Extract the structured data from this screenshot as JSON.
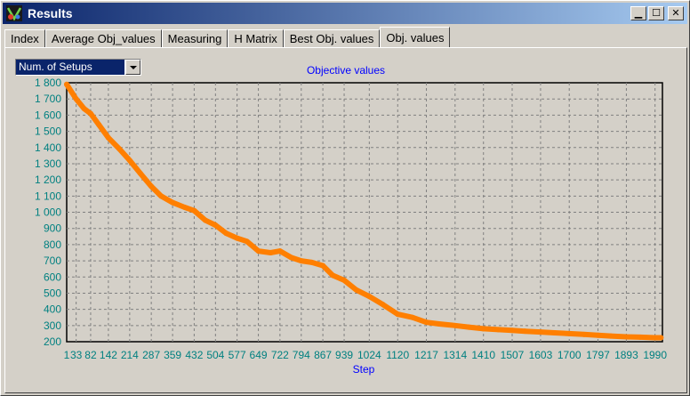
{
  "window": {
    "title": "Results",
    "icon": "app-icon",
    "buttons": {
      "minimize": "▁",
      "maximize": "☐",
      "close": "✕"
    }
  },
  "tabs": [
    {
      "label": "Index",
      "active": false
    },
    {
      "label": "Average Obj_values",
      "active": false
    },
    {
      "label": "Measuring",
      "active": false
    },
    {
      "label": "H Matrix",
      "active": false
    },
    {
      "label": "Best Obj. values",
      "active": false
    },
    {
      "label": "Obj. values",
      "active": true
    }
  ],
  "selector": {
    "value": "Num. of Setups"
  },
  "colors": {
    "series": "#ff7f00",
    "text": "#008080",
    "title": "#0000ff",
    "grid": "#808080"
  },
  "chart_data": {
    "type": "line",
    "title": "Objective values",
    "xlabel": "Step",
    "ylabel": "",
    "xlim": [
      1,
      2015
    ],
    "ylim": [
      200,
      1800
    ],
    "y_ticks": [
      200,
      300,
      400,
      500,
      600,
      700,
      800,
      900,
      1000,
      1100,
      1200,
      1300,
      1400,
      1500,
      1600,
      1700,
      1800
    ],
    "y_tick_labels": [
      "200",
      "300",
      "400",
      "500",
      "600",
      "700",
      "800",
      "900",
      "1 000",
      "1 100",
      "1 200",
      "1 300",
      "1 400",
      "1 500",
      "1 600",
      "1 700",
      "1 800"
    ],
    "x_ticks": [
      1,
      33,
      82,
      142,
      214,
      287,
      359,
      432,
      504,
      577,
      649,
      722,
      794,
      867,
      939,
      1024,
      1120,
      1217,
      1314,
      1410,
      1507,
      1603,
      1700,
      1797,
      1893,
      1990
    ],
    "grid": true,
    "series": [
      {
        "x": [
          1,
          33,
          60,
          82,
          110,
          142,
          180,
          214,
          250,
          287,
          320,
          359,
          400,
          432,
          470,
          504,
          540,
          577,
          610,
          649,
          690,
          722,
          760,
          794,
          830,
          867,
          900,
          939,
          980,
          1024,
          1070,
          1120,
          1170,
          1217,
          1260,
          1314,
          1360,
          1410,
          1460,
          1507,
          1550,
          1603,
          1650,
          1700,
          1750,
          1797,
          1840,
          1893,
          1940,
          1990,
          2010
        ],
        "y": [
          1790,
          1700,
          1640,
          1610,
          1540,
          1460,
          1390,
          1320,
          1240,
          1160,
          1100,
          1060,
          1030,
          1010,
          950,
          920,
          870,
          840,
          820,
          760,
          750,
          760,
          720,
          700,
          690,
          670,
          610,
          580,
          520,
          480,
          430,
          370,
          350,
          320,
          310,
          300,
          290,
          280,
          275,
          270,
          265,
          260,
          255,
          250,
          245,
          240,
          235,
          230,
          228,
          225,
          225
        ]
      }
    ]
  }
}
